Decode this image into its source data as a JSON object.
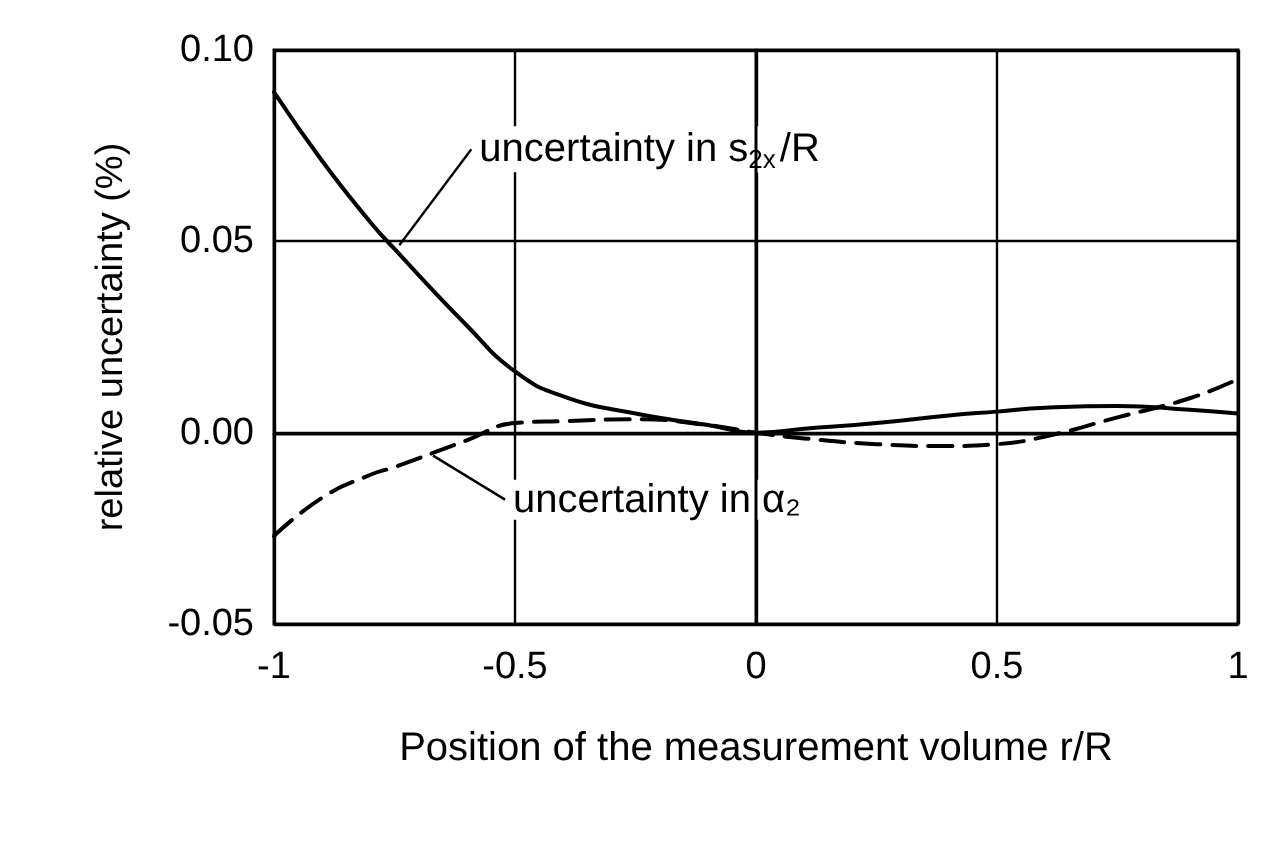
{
  "chart_data": {
    "type": "line",
    "xlabel": "Position of the measurement volume r/R",
    "ylabel": "relative uncertainty (%)",
    "x": [
      -1,
      -0.9,
      -0.8,
      -0.75,
      -0.6,
      -0.5,
      -0.4,
      -0.25,
      -0.1,
      0,
      0.1,
      0.25,
      0.4,
      0.5,
      0.6,
      0.75,
      0.9,
      1
    ],
    "series": [
      {
        "color": "#000000",
        "line_style": "solid",
        "values": [
          0.089,
          0.071,
          0.055,
          0.048,
          0.028,
          0.016,
          0.0095,
          0.005,
          0.002,
          0,
          0.001,
          0.0025,
          0.0045,
          0.0055,
          0.0065,
          0.007,
          0.006,
          0.005
        ]
      },
      {
        "color": "#000000",
        "line_style": "dashed",
        "values": [
          -0.027,
          -0.017,
          -0.011,
          -0.009,
          -0.002,
          0.0025,
          0.003,
          0.0035,
          0.002,
          0,
          -0.0015,
          -0.003,
          -0.0035,
          -0.003,
          -0.001,
          0.004,
          0.009,
          0.014
        ]
      }
    ],
    "annotations": [
      {
        "text": "uncertainty in s$_{2x}$/R",
        "x": -0.74,
        "y": 0.049
      },
      {
        "text": "uncertainty in α₂",
        "x": -0.67,
        "y": -0.006
      }
    ],
    "xlim": [
      -1,
      1
    ],
    "xticks": [
      -1,
      -0.5,
      0,
      0.5,
      1
    ],
    "ylim": [
      -0.05,
      0.1
    ],
    "yticks": [
      {
        "value": -0.05,
        "label": "-0.05"
      },
      {
        "value": 0,
        "label": "0.00"
      },
      {
        "value": 0.05,
        "label": "0.05"
      },
      {
        "value": 0.1,
        "label": "0.10"
      }
    ],
    "grid": true,
    "marker": "none"
  }
}
